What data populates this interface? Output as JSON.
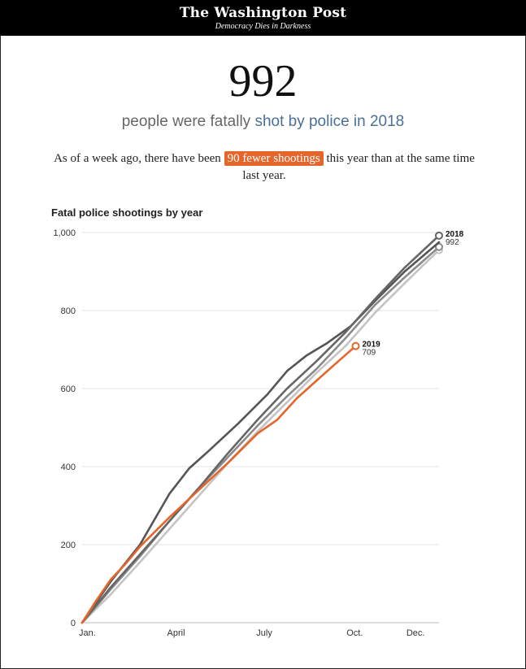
{
  "masthead": {
    "logo": "The Washington Post",
    "tagline": "Democracy Dies in Darkness"
  },
  "headline": {
    "number": "992",
    "subhead_prefix": "people were fatally ",
    "subhead_link": "shot by police in 2018"
  },
  "summary": {
    "before": "As of a week ago, there have been ",
    "highlight": "90 fewer shootings",
    "after": " this year than at the same time last year."
  },
  "colors": {
    "highlight": "#e4662b",
    "link": "#4b6f96",
    "series_2019": "#e4662b",
    "series_2015": "#555555",
    "series_2016": "#8a8a8a",
    "series_2017": "#c4c4c4",
    "series_2018": "#666666"
  },
  "chart_data": {
    "type": "line",
    "title": "Fatal police shootings by year",
    "xlabel": "",
    "ylabel": "",
    "x_unit": "day of year",
    "xlim": [
      1,
      365
    ],
    "ylim": [
      0,
      1000
    ],
    "y_ticks": [
      0,
      200,
      400,
      600,
      800,
      1000
    ],
    "y_tick_labels": [
      "0",
      "200",
      "400",
      "600",
      "800",
      "1,000"
    ],
    "x_ticks": [
      {
        "day": 1,
        "label": "Jan."
      },
      {
        "day": 91,
        "label": "April"
      },
      {
        "day": 182,
        "label": "July"
      },
      {
        "day": 274,
        "label": "Oct."
      },
      {
        "day": 335,
        "label": "Dec."
      }
    ],
    "grid": true,
    "legend": "none",
    "series": [
      {
        "key": "2015",
        "label": "",
        "end_value_label": "",
        "x": [
          1,
          30,
          60,
          90,
          110,
          130,
          160,
          190,
          210,
          230,
          250,
          275,
          300,
          330,
          365
        ],
        "y": [
          0,
          105,
          200,
          330,
          395,
          440,
          510,
          585,
          645,
          685,
          715,
          760,
          825,
          900,
          975
        ]
      },
      {
        "key": "2016",
        "label": "",
        "end_value_label": "",
        "x": [
          1,
          30,
          60,
          90,
          120,
          150,
          180,
          210,
          240,
          270,
          300,
          330,
          365
        ],
        "y": [
          0,
          85,
          170,
          260,
          345,
          425,
          505,
          580,
          650,
          730,
          815,
          885,
          963
        ]
      },
      {
        "key": "2017",
        "label": "",
        "end_value_label": "",
        "x": [
          1,
          30,
          60,
          90,
          120,
          150,
          180,
          210,
          240,
          270,
          300,
          330,
          365
        ],
        "y": [
          0,
          72,
          155,
          240,
          325,
          410,
          490,
          565,
          640,
          710,
          795,
          870,
          955
        ]
      },
      {
        "key": "2018",
        "label": "2018",
        "end_value_label": "992",
        "x": [
          1,
          30,
          60,
          90,
          120,
          150,
          180,
          210,
          240,
          270,
          300,
          330,
          365
        ],
        "y": [
          0,
          90,
          175,
          260,
          345,
          435,
          520,
          600,
          670,
          745,
          830,
          910,
          992
        ]
      },
      {
        "key": "2019",
        "label": "2019",
        "end_value_label": "709",
        "x": [
          1,
          15,
          30,
          45,
          60,
          90,
          120,
          150,
          180,
          200,
          220,
          240,
          260,
          280
        ],
        "y": [
          0,
          55,
          110,
          150,
          195,
          270,
          340,
          410,
          485,
          520,
          575,
          620,
          665,
          709
        ]
      }
    ]
  }
}
